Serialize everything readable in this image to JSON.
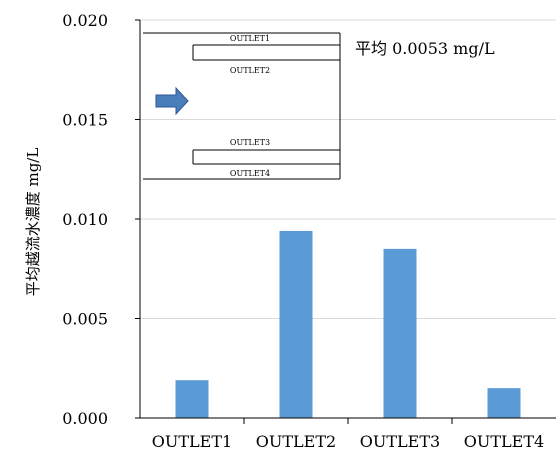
{
  "chart_data": {
    "type": "bar",
    "categories": [
      "OUTLET1",
      "OUTLET2",
      "OUTLET3",
      "OUTLET4"
    ],
    "values": [
      0.0019,
      0.0094,
      0.0085,
      0.0015
    ],
    "title": "",
    "xlabel": "",
    "ylabel": "平均越流水濃度 mg/L",
    "ylim": [
      0,
      0.02
    ],
    "yticks": [
      0,
      0.005,
      0.01,
      0.015,
      0.02
    ],
    "ytick_labels": [
      "0.000",
      "0.005",
      "0.010",
      "0.015",
      "0.020"
    ],
    "grid": true,
    "bar_color": "#5B9BD5",
    "annotation": "平均 0.0053 mg/L",
    "inset": {
      "labels": [
        "OUTLET1",
        "OUTLET2",
        "OUTLET3",
        "OUTLET4"
      ],
      "arrow_color": "#4A7EBB"
    }
  }
}
